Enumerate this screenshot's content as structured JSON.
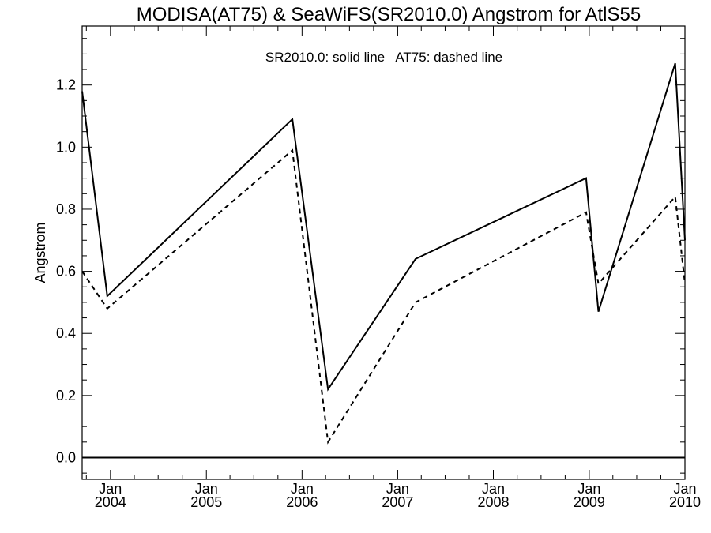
{
  "chart_data": {
    "type": "line",
    "title": "MODISA(AT75) & SeaWiFS(SR2010.0)  Angstrom for AtlS55",
    "annotation": "SR2010.0: solid line   AT75: dashed line",
    "xlabel": "",
    "ylabel": "Angstrom",
    "xlim": [
      "2003-09-15",
      "2010-01-01"
    ],
    "ylim": [
      -0.07,
      1.39
    ],
    "x_ticks": [
      {
        "date": "2004-01-01",
        "month": "Jan",
        "year": "2004"
      },
      {
        "date": "2005-01-01",
        "month": "Jan",
        "year": "2005"
      },
      {
        "date": "2006-01-01",
        "month": "Jan",
        "year": "2006"
      },
      {
        "date": "2007-01-01",
        "month": "Jan",
        "year": "2007"
      },
      {
        "date": "2008-01-01",
        "month": "Jan",
        "year": "2008"
      },
      {
        "date": "2009-01-01",
        "month": "Jan",
        "year": "2009"
      },
      {
        "date": "2010-01-01",
        "month": "Jan",
        "year": "2010"
      }
    ],
    "y_ticks": [
      "0.0",
      "0.2",
      "0.4",
      "0.6",
      "0.8",
      "1.0",
      "1.2"
    ],
    "y_tick_values": [
      0.0,
      0.2,
      0.4,
      0.6,
      0.8,
      1.0,
      1.2
    ],
    "reference_line": 0.0,
    "series": [
      {
        "line_style": "solid",
        "points": [
          {
            "x": "2003-09-15",
            "y": 1.18
          },
          {
            "x": "2003-12-20",
            "y": 0.52
          },
          {
            "x": "2005-11-25",
            "y": 1.09
          },
          {
            "x": "2006-04-10",
            "y": 0.22
          },
          {
            "x": "2007-03-10",
            "y": 0.64
          },
          {
            "x": "2008-12-20",
            "y": 0.9
          },
          {
            "x": "2009-02-05",
            "y": 0.47
          },
          {
            "x": "2009-11-25",
            "y": 1.27
          },
          {
            "x": "2010-01-01",
            "y": 0.7
          }
        ]
      },
      {
        "line_style": "dashed",
        "points": [
          {
            "x": "2003-09-15",
            "y": 0.6
          },
          {
            "x": "2003-12-20",
            "y": 0.48
          },
          {
            "x": "2005-11-25",
            "y": 0.99
          },
          {
            "x": "2006-04-10",
            "y": 0.05
          },
          {
            "x": "2007-03-10",
            "y": 0.5
          },
          {
            "x": "2008-12-20",
            "y": 0.79
          },
          {
            "x": "2009-02-05",
            "y": 0.56
          },
          {
            "x": "2009-11-25",
            "y": 0.84
          },
          {
            "x": "2010-01-01",
            "y": 0.56
          }
        ]
      }
    ]
  }
}
